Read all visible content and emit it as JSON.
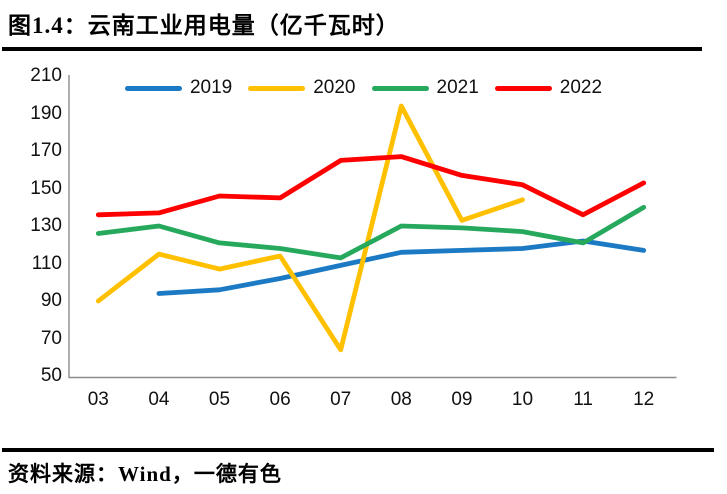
{
  "figure": {
    "title": "图1.4：云南工业用电量（亿千瓦时）",
    "source": "资料来源：Wind，一德有色"
  },
  "chart_data": {
    "type": "line",
    "title": "云南工业用电量（亿千瓦时）",
    "categories": [
      "03",
      "04",
      "05",
      "06",
      "07",
      "08",
      "09",
      "10",
      "11",
      "12"
    ],
    "series": [
      {
        "name": "2019",
        "color": "#1B7AC3",
        "values": [
          null,
          94,
          96,
          102,
          109,
          116,
          117,
          118,
          122,
          117
        ]
      },
      {
        "name": "2020",
        "color": "#FFC000",
        "values": [
          90,
          115,
          107,
          114,
          64,
          194,
          133,
          144,
          null,
          null
        ]
      },
      {
        "name": "2021",
        "color": "#27A95D",
        "values": [
          126,
          130,
          121,
          118,
          113,
          130,
          129,
          127,
          121,
          140
        ]
      },
      {
        "name": "2022",
        "color": "#FE0000",
        "values": [
          136,
          137,
          146,
          145,
          165,
          167,
          157,
          152,
          136,
          153
        ]
      }
    ],
    "ylim": [
      50,
      210
    ],
    "ytick_step": 20,
    "yticks": [
      210,
      190,
      170,
      150,
      130,
      110,
      90,
      70,
      50
    ],
    "legend_position": "top",
    "grid": false,
    "axis_color": "#8C8C8C",
    "tick_color": "#111111"
  }
}
